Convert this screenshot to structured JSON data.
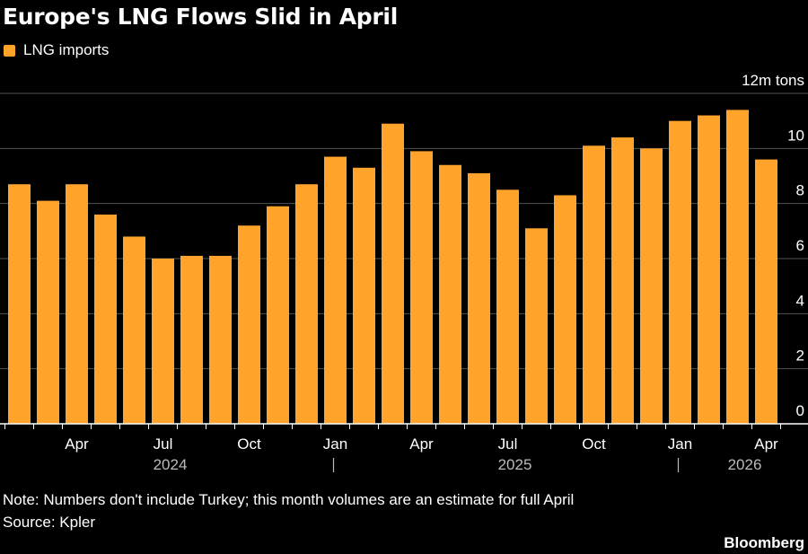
{
  "chart_data": {
    "type": "bar",
    "title": "Europe's LNG Flows Slid in April",
    "legend": [
      "LNG imports"
    ],
    "unit_label": "12m tons",
    "series": [
      {
        "name": "LNG imports",
        "color": "#ffa32b",
        "values": [
          8.7,
          8.1,
          8.7,
          7.6,
          6.8,
          6.0,
          6.1,
          6.1,
          7.2,
          7.9,
          8.7,
          9.7,
          9.3,
          10.9,
          9.9,
          9.4,
          9.1,
          8.5,
          7.1,
          8.3,
          10.1,
          10.4,
          10.0,
          11.0,
          11.2,
          11.4,
          9.6
        ]
      }
    ],
    "categories": [
      "2024-02",
      "2024-03",
      "2024-04",
      "2024-05",
      "2024-06",
      "2024-07",
      "2024-08",
      "2024-09",
      "2024-10",
      "2024-11",
      "2024-12",
      "2025-01",
      "2025-02",
      "2025-03",
      "2025-04",
      "2025-05",
      "2025-06",
      "2025-07",
      "2025-08",
      "2025-09",
      "2025-10",
      "2025-11",
      "2025-12",
      "2026-01",
      "2026-02",
      "2026-03",
      "2026-04"
    ],
    "ylim": [
      0,
      12
    ],
    "yticks": [
      "0",
      "2",
      "4",
      "6",
      "8",
      "10"
    ],
    "xtick_labels": [
      {
        "index": 2,
        "label": "Apr"
      },
      {
        "index": 5,
        "label": "Jul"
      },
      {
        "index": 8,
        "label": "Oct"
      },
      {
        "index": 11,
        "label": "Jan"
      },
      {
        "index": 14,
        "label": "Apr"
      },
      {
        "index": 17,
        "label": "Jul"
      },
      {
        "index": 20,
        "label": "Oct"
      },
      {
        "index": 23,
        "label": "Jan"
      },
      {
        "index": 26,
        "label": "Apr"
      }
    ],
    "year_labels": [
      {
        "index": 5,
        "label": "2024"
      },
      {
        "index": 17,
        "label": "2025"
      },
      {
        "index": 25,
        "label": "2026"
      }
    ],
    "year_separators": [
      11,
      23
    ],
    "grid": true,
    "legend_position": "top-left"
  },
  "note": "Note: Numbers don't include Turkey; this month volumes are an estimate for full April",
  "source": "Source: Kpler",
  "brand": "Bloomberg"
}
